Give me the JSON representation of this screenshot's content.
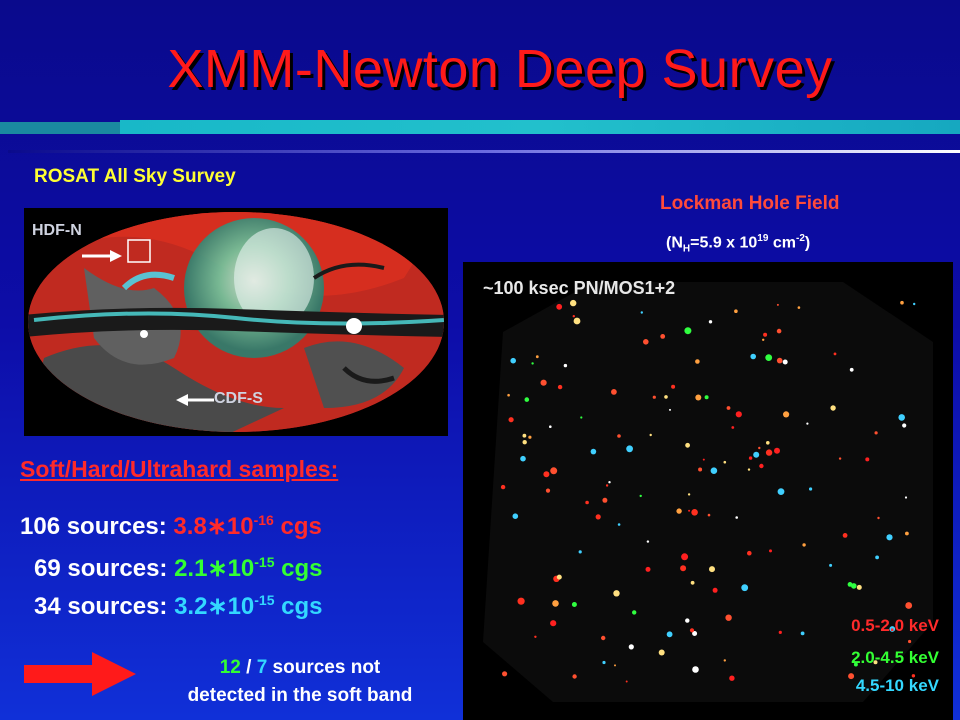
{
  "title": "XMM-Newton Deep Survey",
  "rosat": {
    "heading": "ROSAT All Sky Survey",
    "hdf_label": "HDF-N",
    "cdf_label": "CDF-S"
  },
  "lockman": {
    "heading": "Lockman Hole Field",
    "nh_prefix": "(N",
    "nh_sub": "H",
    "nh_mid": "=5.9 x 10",
    "nh_exp": "19",
    "nh_unit": " cm",
    "nh_unit_exp": "-2",
    "nh_close": ")",
    "exposure": "~100 ksec PN/MOS1+2",
    "bands": [
      "0.5-2.0 keV",
      "2.0-4.5 keV",
      "4.5-10  keV"
    ]
  },
  "samples_heading": "Soft/Hard/Ultrahard samples:",
  "sources": [
    {
      "count": "106 sources: ",
      "mant": "3.8",
      "star": "∗",
      "base": "10",
      "exp": "-16",
      "unit": " cgs"
    },
    {
      "count": "69 sources: ",
      "mant": "2.1",
      "star": "∗",
      "base": "10",
      "exp": "-15",
      "unit": " cgs"
    },
    {
      "count": "34 sources: ",
      "mant": "3.2",
      "star": "∗",
      "base": "10",
      "exp": "-15",
      "unit": " cgs"
    }
  ],
  "note": {
    "n1": "12",
    "slash": " / ",
    "n2": "7",
    "line1_rest": " sources not",
    "line2": "detected in the soft band"
  },
  "colors": {
    "title": "#ff1a1a",
    "soft": "#ff2a2a",
    "hard": "#33ff33",
    "ultrahard": "#33d8ff"
  },
  "icons": [
    "right-arrow-icon",
    "left-arrow-icon",
    "big-red-arrow-icon"
  ]
}
